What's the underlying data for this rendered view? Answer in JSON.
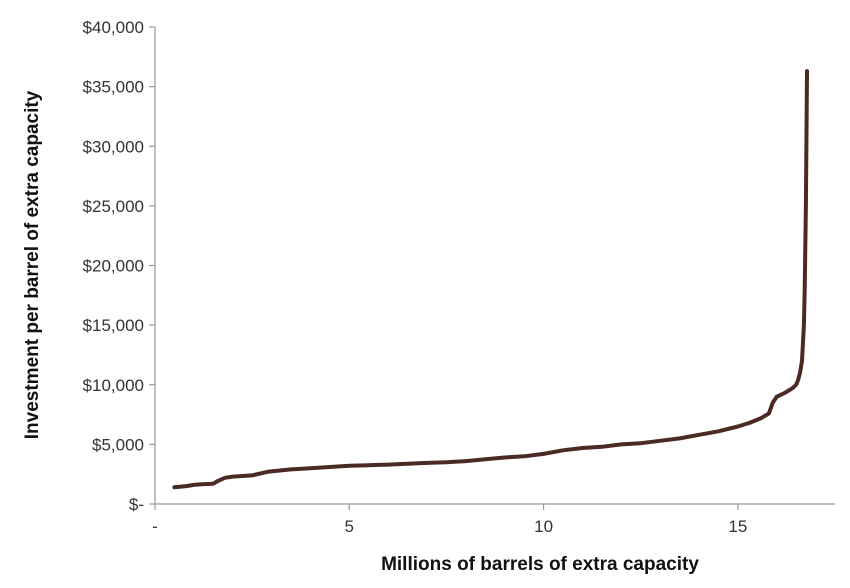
{
  "colors": {
    "line": "#4a2a22",
    "axis": "#999999",
    "text": "#333333"
  },
  "chart_data": {
    "type": "line",
    "xlabel": "Millions of barrels of extra capacity",
    "ylabel": "Investment per barrel of extra capacity",
    "xlim": [
      0,
      17.5
    ],
    "ylim": [
      0,
      40000
    ],
    "grid": false,
    "x_ticks": [
      {
        "value": 0,
        "label": "-"
      },
      {
        "value": 5,
        "label": "5"
      },
      {
        "value": 10,
        "label": "10"
      },
      {
        "value": 15,
        "label": "15"
      }
    ],
    "y_ticks": [
      {
        "value": 0,
        "label": "$-"
      },
      {
        "value": 5000,
        "label": "$5,000"
      },
      {
        "value": 10000,
        "label": "$10,000"
      },
      {
        "value": 15000,
        "label": "$15,000"
      },
      {
        "value": 20000,
        "label": "$20,000"
      },
      {
        "value": 25000,
        "label": "$25,000"
      },
      {
        "value": 30000,
        "label": "$30,000"
      },
      {
        "value": 35000,
        "label": "$35,000"
      },
      {
        "value": 40000,
        "label": "$40,000"
      }
    ],
    "series": [
      {
        "x": [
          0.5,
          0.8,
          1.0,
          1.2,
          1.5,
          1.6,
          1.8,
          2.0,
          2.5,
          2.9,
          3.5,
          4.0,
          4.5,
          5.0,
          5.5,
          6.0,
          7.0,
          7.5,
          8.0,
          8.5,
          9.0,
          9.5,
          10.0,
          10.5,
          11.0,
          11.5,
          12.0,
          12.5,
          13.0,
          13.5,
          14.0,
          14.5,
          15.0,
          15.3,
          15.6,
          15.8,
          15.9,
          16.0,
          16.2,
          16.4,
          16.5,
          16.55,
          16.6,
          16.65,
          16.7,
          16.72,
          16.75,
          16.78
        ],
        "values": [
          1400,
          1500,
          1600,
          1650,
          1700,
          1900,
          2200,
          2300,
          2400,
          2700,
          2900,
          3000,
          3100,
          3200,
          3250,
          3300,
          3450,
          3500,
          3600,
          3750,
          3900,
          4000,
          4200,
          4500,
          4700,
          4800,
          5000,
          5100,
          5300,
          5500,
          5800,
          6100,
          6500,
          6800,
          7200,
          7600,
          8500,
          9000,
          9300,
          9700,
          10000,
          10400,
          11000,
          12000,
          15000,
          18000,
          25000,
          36300
        ]
      }
    ]
  }
}
